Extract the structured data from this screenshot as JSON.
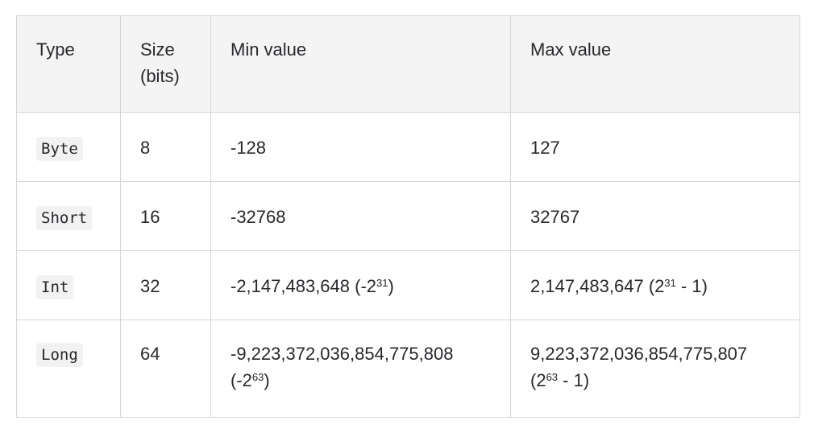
{
  "table": {
    "headers": [
      "Type",
      "Size (bits)",
      "Min value",
      "Max value"
    ],
    "rows": [
      {
        "type": "Byte",
        "size": "8",
        "min": "-128",
        "max": "127"
      },
      {
        "type": "Short",
        "size": "16",
        "min": "-32768",
        "max": "32767"
      },
      {
        "type": "Int",
        "size": "32",
        "min": "-2,147,483,648",
        "min_paren_open": "(-2",
        "min_exp": "31",
        "min_paren_close": ")",
        "max": "2,147,483,647",
        "max_paren_open": "(2",
        "max_exp": "31",
        "max_paren_close": " - 1)"
      },
      {
        "type": "Long",
        "size": "64",
        "min": "-9,223,372,036,854,775,808",
        "min_paren_open": "(-2",
        "min_exp": "63",
        "min_paren_close": ")",
        "max": "9,223,372,036,854,775,807",
        "max_paren_open": "(2",
        "max_exp": "63",
        "max_paren_close": " - 1)"
      }
    ]
  }
}
